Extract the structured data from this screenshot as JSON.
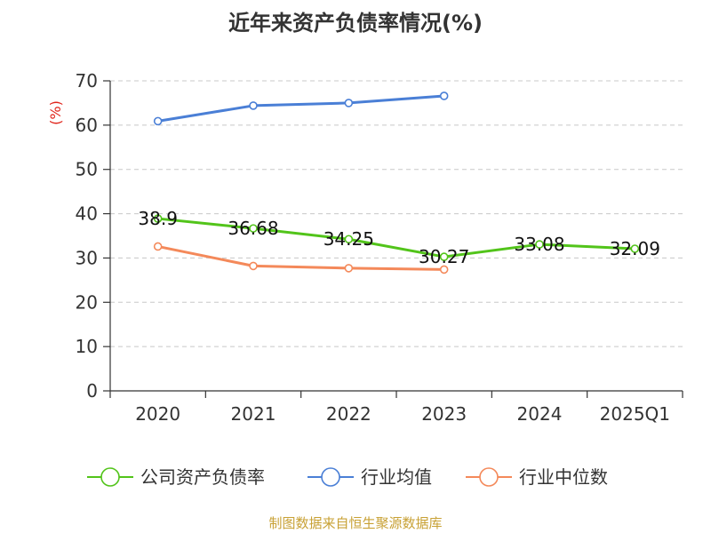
{
  "chart_data": {
    "type": "line",
    "title": "近年来资产负债率情况(%)",
    "ylabel": "(%)",
    "xlabel": "",
    "categories": [
      "2020",
      "2021",
      "2022",
      "2023",
      "2024",
      "2025Q1"
    ],
    "ylim": [
      0,
      70
    ],
    "yticks": [
      0,
      10,
      20,
      30,
      40,
      50,
      60,
      70
    ],
    "grid": true,
    "legend_position": "bottom",
    "series": [
      {
        "name": "公司资产负债率",
        "color": "#52c41a",
        "values": [
          38.9,
          36.68,
          34.25,
          30.27,
          33.08,
          32.09
        ],
        "labels": [
          "38.9",
          "36.68",
          "34.25",
          "30.27",
          "33.08",
          "32.09"
        ]
      },
      {
        "name": "行业均值",
        "color": "#4a7fd6",
        "values": [
          60.9,
          64.4,
          65.0,
          66.6,
          null,
          null
        ]
      },
      {
        "name": "行业中位数",
        "color": "#f4895a",
        "values": [
          32.6,
          28.2,
          27.7,
          27.4,
          null,
          null
        ]
      }
    ]
  },
  "footer": {
    "source": "制图数据来自恒生聚源数据库"
  }
}
